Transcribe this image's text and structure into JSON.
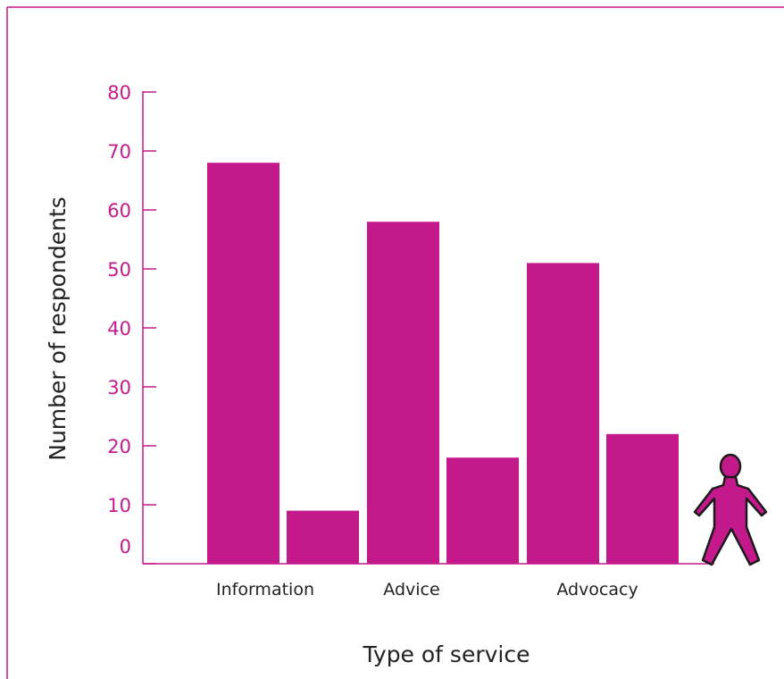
{
  "colors": {
    "frame": "#c4198a",
    "bar": "#c4198a",
    "axis": "#c4198a",
    "tick_text": "#c4198a",
    "label_text": "#222222"
  },
  "chart_data": {
    "type": "bar",
    "title": "",
    "xlabel": "Type of service",
    "ylabel": "Number of respondents",
    "ylim": [
      0,
      80
    ],
    "yticks": [
      0,
      10,
      20,
      30,
      40,
      50,
      60,
      70,
      80
    ],
    "grid": false,
    "legend": "none",
    "categories": [
      "Information",
      "Advice",
      "Advocacy"
    ],
    "series": [
      {
        "values": [
          68,
          58,
          51
        ]
      },
      {
        "values": [
          9,
          18,
          22
        ]
      }
    ],
    "icon": "person-icon"
  }
}
